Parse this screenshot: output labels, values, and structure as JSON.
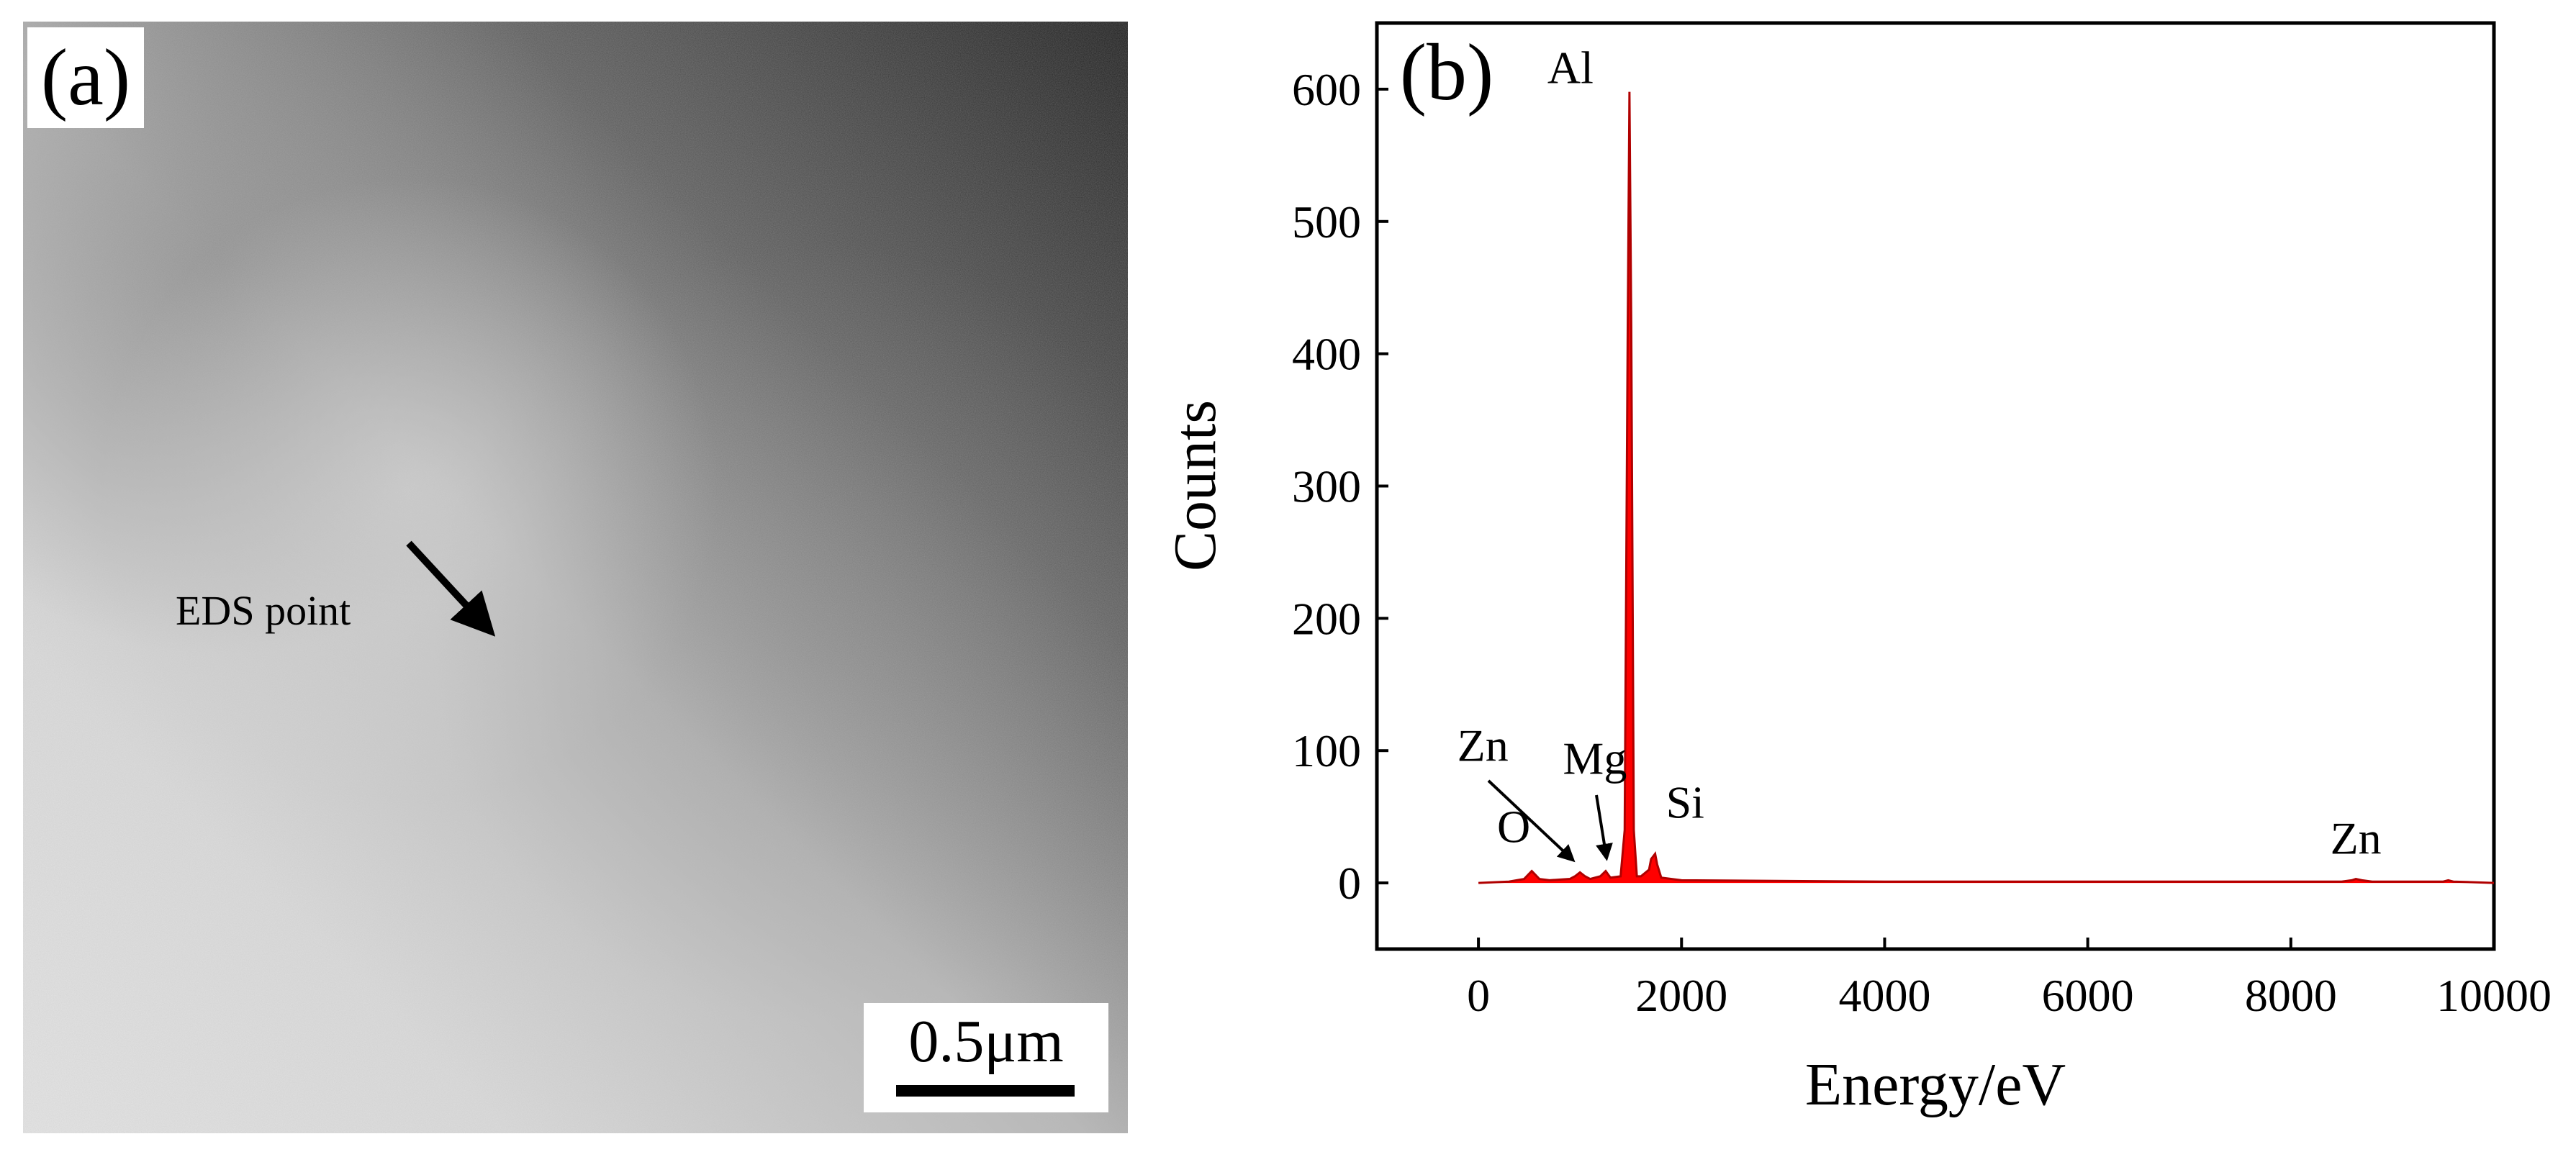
{
  "panel_a": {
    "label": "(a)",
    "annotation": "EDS point",
    "scale_bar_label": "0.5μm"
  },
  "panel_b": {
    "label": "(b)"
  },
  "colors": {
    "spectrum": "#ff0000",
    "spectrum_edge": "#b00000",
    "axes": "#000000"
  },
  "chart_data": {
    "type": "area",
    "title": "",
    "xlabel": "Energy/eV",
    "ylabel": "Counts",
    "xlim": [
      -1000,
      10000
    ],
    "ylim": [
      -50,
      650
    ],
    "xticks": [
      0,
      2000,
      4000,
      6000,
      8000,
      10000
    ],
    "yticks": [
      0,
      100,
      200,
      300,
      400,
      500,
      600
    ],
    "grid": false,
    "series": [
      {
        "x": [
          0,
          300,
          450,
          500,
          525,
          550,
          600,
          700,
          900,
          950,
          1000,
          1050,
          1100,
          1200,
          1253,
          1300,
          1400,
          1440,
          1470,
          1487,
          1505,
          1530,
          1560,
          1600,
          1680,
          1700,
          1740,
          1760,
          1800,
          2000,
          4000,
          6000,
          8000,
          8500,
          8600,
          8640,
          8700,
          8800,
          9500,
          9550,
          9600,
          10000
        ],
        "values": [
          0,
          1,
          3,
          7,
          9,
          7,
          3,
          2,
          3,
          5,
          8,
          5,
          3,
          5,
          9,
          4,
          5,
          40,
          420,
          598,
          420,
          40,
          5,
          5,
          10,
          18,
          22,
          14,
          4,
          2,
          1,
          1,
          1,
          1,
          2,
          3,
          2,
          1,
          1,
          2,
          1,
          0
        ]
      }
    ],
    "annotations": [
      {
        "text": "Al",
        "x": 1487,
        "y": 598
      },
      {
        "text": "O",
        "x": 525,
        "y": 9
      },
      {
        "text": "Zn",
        "x": 1000,
        "y": 8
      },
      {
        "text": "Mg",
        "x": 1253,
        "y": 9
      },
      {
        "text": "Si",
        "x": 1740,
        "y": 22
      },
      {
        "text": "Zn",
        "x": 8640,
        "y": 3
      }
    ]
  }
}
